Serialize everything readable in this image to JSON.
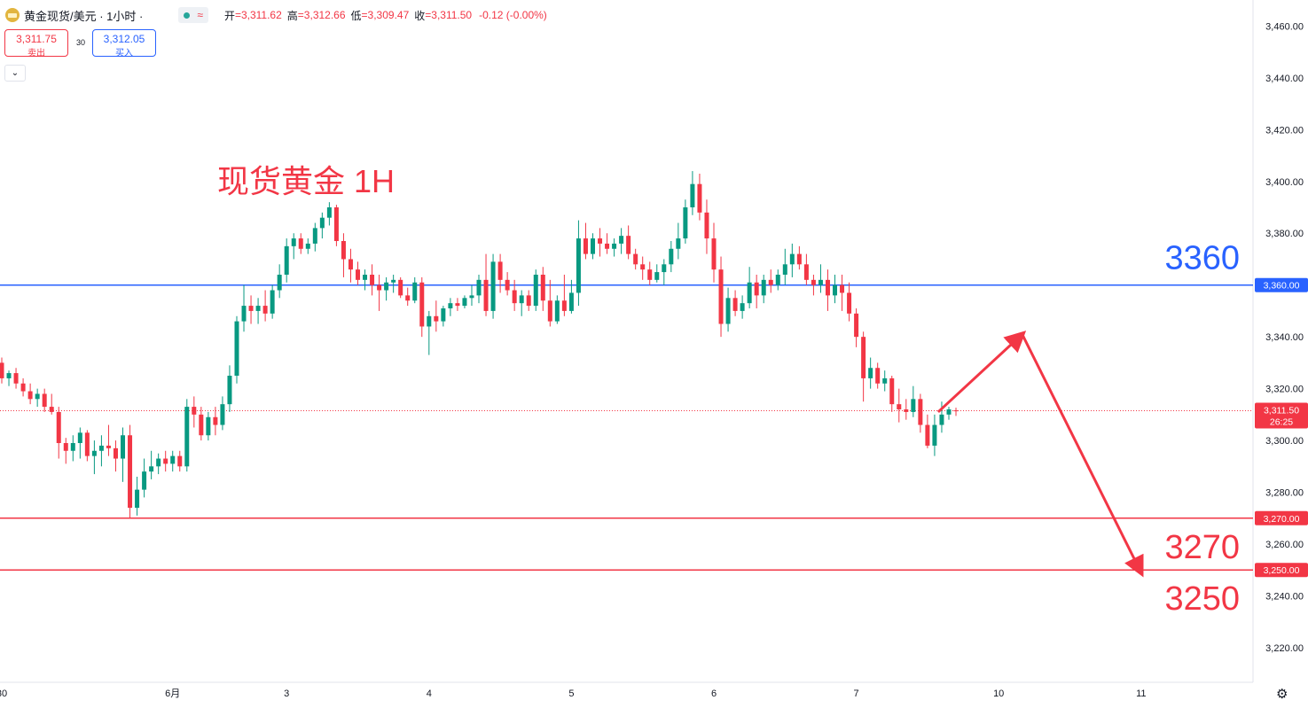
{
  "header": {
    "symbol": "黄金现货/美元 · 1小时 ·",
    "status_icon": "≈",
    "ohlc": [
      {
        "label": "开",
        "value": "=3,311.62"
      },
      {
        "label": "高",
        "value": "=3,312.66"
      },
      {
        "label": "低",
        "value": "=3,309.47"
      },
      {
        "label": "收",
        "value": "=3,311.50"
      }
    ],
    "change": "-0.12 (-0.00%)"
  },
  "trade": {
    "sell_price": "3,311.75",
    "sell_label": "卖出",
    "spread": "30",
    "buy_price": "3,312.05",
    "buy_label": "买入"
  },
  "collapse_icon": "chevron-down-icon",
  "settings_icon": "gear-icon",
  "chart_data": {
    "type": "candlestick",
    "title": "现货黄金 1H",
    "y_axis": {
      "ylim": [
        3208,
        3468
      ],
      "ticks": [
        "3,220.00",
        "3,240.00",
        "3,260.00",
        "3,280.00",
        "3,300.00",
        "3,320.00",
        "3,340.00",
        "3,360.00",
        "3,380.00",
        "3,400.00",
        "3,420.00",
        "3,440.00",
        "3,460.00"
      ],
      "tick_values": [
        3220,
        3240,
        3260,
        3280,
        3300,
        3320,
        3340,
        3360,
        3380,
        3400,
        3420,
        3440,
        3460
      ]
    },
    "x_axis": {
      "labels": [
        {
          "text": "30",
          "bar": 0
        },
        {
          "text": "6月",
          "bar": 24
        },
        {
          "text": "3",
          "bar": 40
        },
        {
          "text": "4",
          "bar": 60
        },
        {
          "text": "5",
          "bar": 80
        },
        {
          "text": "6",
          "bar": 100
        },
        {
          "text": "7",
          "bar": 120
        },
        {
          "text": "10",
          "bar": 140
        },
        {
          "text": "11",
          "bar": 160
        }
      ]
    },
    "last_price": {
      "value": 3311.5,
      "label": "3,311.50",
      "countdown": "26:25",
      "color": "#f23645"
    },
    "horizontal_lines": [
      {
        "value": 3360,
        "label": "3,360.00",
        "big_label": "3360",
        "color": "#2962ff"
      },
      {
        "value": 3270,
        "label": "3,270.00",
        "big_label": "3270",
        "color": "#f23645"
      },
      {
        "value": 3250,
        "label": "3,250.00",
        "big_label": "3250",
        "color": "#f23645"
      }
    ],
    "projection": {
      "color": "#f23645",
      "points": [
        {
          "bar": 131.5,
          "value": 3311
        },
        {
          "bar": 143.3,
          "value": 3341
        },
        {
          "bar": 160,
          "value": 3249
        }
      ]
    },
    "up_color": "#089981",
    "down_color": "#f23645",
    "candles": [
      [
        3330,
        3332,
        3322,
        3324
      ],
      [
        3324,
        3327,
        3321,
        3326
      ],
      [
        3326,
        3328,
        3320,
        3322
      ],
      [
        3322,
        3324,
        3317,
        3319
      ],
      [
        3319,
        3322,
        3314,
        3316
      ],
      [
        3316,
        3320,
        3313,
        3318
      ],
      [
        3318,
        3320,
        3311,
        3313
      ],
      [
        3313,
        3318,
        3310,
        3311
      ],
      [
        3311,
        3313,
        3293,
        3299
      ],
      [
        3299,
        3301,
        3291,
        3296
      ],
      [
        3296,
        3302,
        3292,
        3299
      ],
      [
        3299,
        3305,
        3293,
        3303
      ],
      [
        3303,
        3304,
        3292,
        3294
      ],
      [
        3294,
        3300,
        3287,
        3296
      ],
      [
        3296,
        3302,
        3290,
        3298
      ],
      [
        3298,
        3306,
        3294,
        3297
      ],
      [
        3297,
        3300,
        3288,
        3293
      ],
      [
        3293,
        3305,
        3284,
        3302
      ],
      [
        3302,
        3306,
        3270,
        3274
      ],
      [
        3274,
        3286,
        3271,
        3281
      ],
      [
        3281,
        3293,
        3278,
        3288
      ],
      [
        3288,
        3296,
        3285,
        3290
      ],
      [
        3290,
        3295,
        3287,
        3293
      ],
      [
        3293,
        3296,
        3288,
        3291
      ],
      [
        3291,
        3296,
        3288,
        3294
      ],
      [
        3294,
        3296,
        3288,
        3290
      ],
      [
        3290,
        3316,
        3288,
        3313
      ],
      [
        3313,
        3317,
        3305,
        3310
      ],
      [
        3310,
        3313,
        3300,
        3302
      ],
      [
        3302,
        3311,
        3300,
        3309
      ],
      [
        3309,
        3313,
        3302,
        3306
      ],
      [
        3306,
        3317,
        3304,
        3314
      ],
      [
        3314,
        3329,
        3311,
        3325
      ],
      [
        3325,
        3348,
        3322,
        3346
      ],
      [
        3346,
        3360,
        3342,
        3352
      ],
      [
        3352,
        3356,
        3345,
        3350
      ],
      [
        3350,
        3355,
        3345,
        3352
      ],
      [
        3352,
        3358,
        3346,
        3349
      ],
      [
        3349,
        3360,
        3347,
        3358
      ],
      [
        3358,
        3368,
        3355,
        3364
      ],
      [
        3364,
        3378,
        3361,
        3375
      ],
      [
        3375,
        3380,
        3370,
        3378
      ],
      [
        3378,
        3380,
        3372,
        3374
      ],
      [
        3374,
        3378,
        3372,
        3376
      ],
      [
        3376,
        3384,
        3373,
        3382
      ],
      [
        3382,
        3388,
        3378,
        3386
      ],
      [
        3386,
        3392,
        3383,
        3390
      ],
      [
        3390,
        3391,
        3375,
        3377
      ],
      [
        3377,
        3380,
        3363,
        3370
      ],
      [
        3370,
        3374,
        3361,
        3366
      ],
      [
        3366,
        3369,
        3360,
        3362
      ],
      [
        3362,
        3366,
        3358,
        3364
      ],
      [
        3364,
        3368,
        3356,
        3360
      ],
      [
        3360,
        3364,
        3350,
        3358
      ],
      [
        3358,
        3363,
        3354,
        3361
      ],
      [
        3361,
        3364,
        3357,
        3362
      ],
      [
        3362,
        3363,
        3355,
        3356
      ],
      [
        3356,
        3359,
        3352,
        3354
      ],
      [
        3354,
        3363,
        3353,
        3361
      ],
      [
        3361,
        3363,
        3340,
        3344
      ],
      [
        3344,
        3350,
        3333,
        3348
      ],
      [
        3348,
        3354,
        3342,
        3346
      ],
      [
        3346,
        3352,
        3344,
        3351
      ],
      [
        3351,
        3355,
        3348,
        3353
      ],
      [
        3353,
        3355,
        3350,
        3352
      ],
      [
        3352,
        3356,
        3351,
        3355
      ],
      [
        3355,
        3360,
        3352,
        3356
      ],
      [
        3356,
        3364,
        3353,
        3362
      ],
      [
        3362,
        3372,
        3348,
        3350
      ],
      [
        3350,
        3372,
        3347,
        3369
      ],
      [
        3369,
        3372,
        3357,
        3362
      ],
      [
        3362,
        3365,
        3356,
        3358
      ],
      [
        3358,
        3362,
        3350,
        3353
      ],
      [
        3353,
        3358,
        3348,
        3356
      ],
      [
        3356,
        3358,
        3350,
        3352
      ],
      [
        3352,
        3366,
        3350,
        3364
      ],
      [
        3364,
        3367,
        3350,
        3354
      ],
      [
        3354,
        3362,
        3344,
        3346
      ],
      [
        3346,
        3356,
        3345,
        3354
      ],
      [
        3354,
        3364,
        3348,
        3350
      ],
      [
        3350,
        3362,
        3349,
        3357
      ],
      [
        3357,
        3385,
        3352,
        3378
      ],
      [
        3378,
        3384,
        3370,
        3372
      ],
      [
        3372,
        3380,
        3370,
        3378
      ],
      [
        3378,
        3382,
        3371,
        3376
      ],
      [
        3376,
        3380,
        3372,
        3374
      ],
      [
        3374,
        3378,
        3371,
        3376
      ],
      [
        3376,
        3382,
        3372,
        3379
      ],
      [
        3379,
        3383,
        3370,
        3372
      ],
      [
        3372,
        3374,
        3366,
        3368
      ],
      [
        3368,
        3371,
        3362,
        3366
      ],
      [
        3366,
        3369,
        3360,
        3362
      ],
      [
        3362,
        3368,
        3361,
        3365
      ],
      [
        3365,
        3370,
        3360,
        3368
      ],
      [
        3368,
        3377,
        3365,
        3374
      ],
      [
        3374,
        3384,
        3370,
        3378
      ],
      [
        3378,
        3393,
        3376,
        3390
      ],
      [
        3390,
        3404,
        3387,
        3399
      ],
      [
        3399,
        3403,
        3385,
        3388
      ],
      [
        3388,
        3393,
        3372,
        3378
      ],
      [
        3378,
        3384,
        3361,
        3366
      ],
      [
        3366,
        3371,
        3340,
        3345
      ],
      [
        3345,
        3359,
        3342,
        3355
      ],
      [
        3355,
        3358,
        3348,
        3350
      ],
      [
        3350,
        3356,
        3347,
        3353
      ],
      [
        3353,
        3367,
        3351,
        3361
      ],
      [
        3361,
        3364,
        3351,
        3356
      ],
      [
        3356,
        3364,
        3353,
        3362
      ],
      [
        3362,
        3366,
        3357,
        3360
      ],
      [
        3360,
        3366,
        3358,
        3364
      ],
      [
        3364,
        3374,
        3360,
        3368
      ],
      [
        3368,
        3376,
        3363,
        3372
      ],
      [
        3372,
        3375,
        3366,
        3368
      ],
      [
        3368,
        3372,
        3360,
        3362
      ],
      [
        3362,
        3364,
        3356,
        3360
      ],
      [
        3360,
        3368,
        3357,
        3362
      ],
      [
        3362,
        3366,
        3350,
        3356
      ],
      [
        3356,
        3364,
        3353,
        3360
      ],
      [
        3360,
        3364,
        3350,
        3357
      ],
      [
        3357,
        3361,
        3346,
        3349
      ],
      [
        3349,
        3351,
        3336,
        3340
      ],
      [
        3340,
        3342,
        3315,
        3324
      ],
      [
        3324,
        3332,
        3320,
        3328
      ],
      [
        3328,
        3330,
        3320,
        3322
      ],
      [
        3322,
        3327,
        3319,
        3324
      ],
      [
        3324,
        3325,
        3311,
        3314
      ],
      [
        3314,
        3320,
        3307,
        3312
      ],
      [
        3312,
        3316,
        3308,
        3311
      ],
      [
        3311,
        3321,
        3309,
        3316
      ],
      [
        3316,
        3318,
        3303,
        3306
      ],
      [
        3306,
        3310,
        3297,
        3298
      ],
      [
        3298,
        3310,
        3294,
        3306
      ],
      [
        3306,
        3315,
        3303,
        3310
      ],
      [
        3310,
        3313,
        3308,
        3312
      ],
      [
        3311.62,
        3312.66,
        3309.47,
        3311.5
      ]
    ]
  }
}
